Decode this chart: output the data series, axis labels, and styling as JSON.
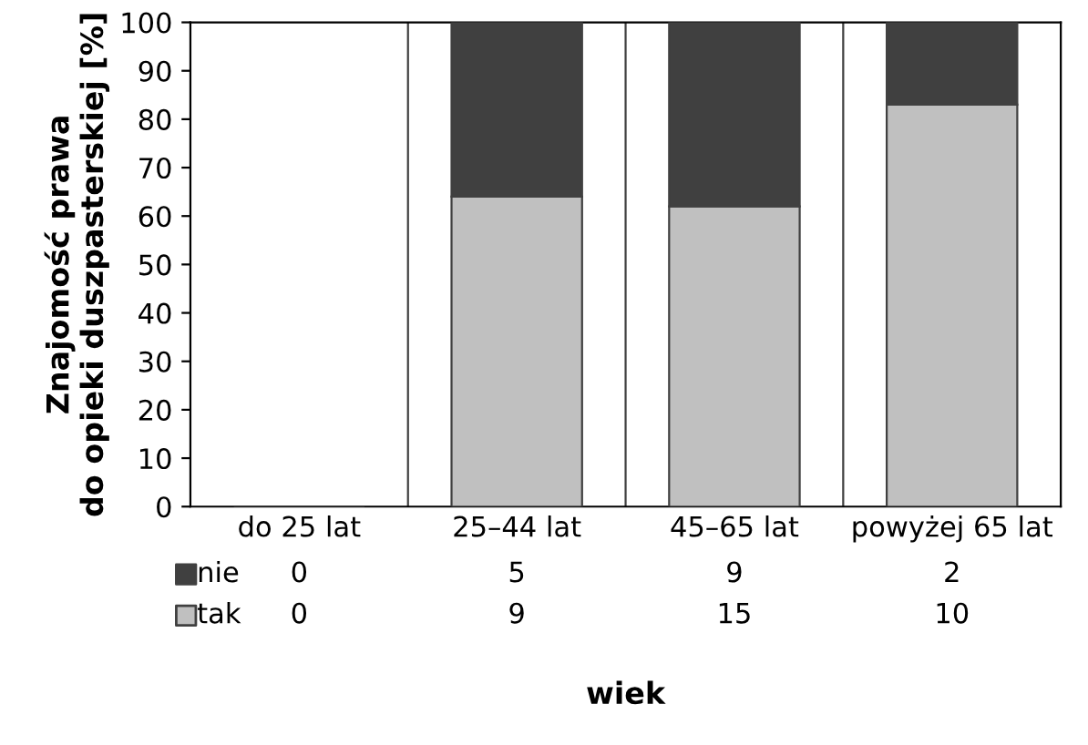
{
  "chart_data": {
    "type": "bar",
    "stacked": true,
    "xlabel": "wiek",
    "ylabel": "Znajomość prawa\ndo opieki duszpasterskiej [%]",
    "categories": [
      "do 25 lat",
      "25–44 lat",
      "45–65 lat",
      "powyżej 65 lat"
    ],
    "series": [
      {
        "name": "tak",
        "color": "#c0c0c0",
        "values": [
          0,
          64,
          62,
          83
        ]
      },
      {
        "name": "nie",
        "color": "#404040",
        "values": [
          0,
          36,
          38,
          17
        ]
      }
    ],
    "annotations": [
      "0",
      "5",
      "9",
      "2",
      "0",
      "9",
      "15",
      "10"
    ],
    "legend": "bottom left",
    "ylim": [
      0,
      100
    ],
    "yticks": [
      0,
      10,
      20,
      30,
      40,
      50,
      60,
      70,
      80,
      90,
      100
    ],
    "grid": "x"
  }
}
